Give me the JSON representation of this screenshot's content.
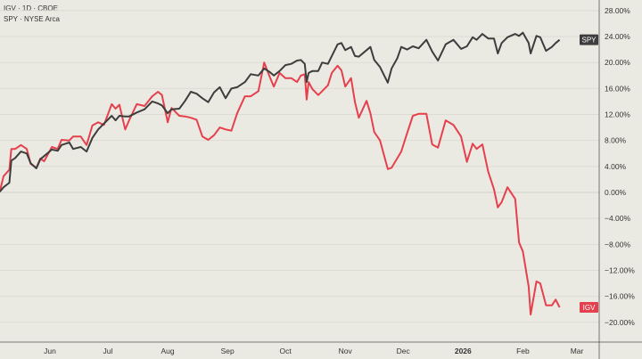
{
  "legend": {
    "line1": "IGV · 1D · CBOE",
    "line2": "SPY · NYSE Arca"
  },
  "chart_data": {
    "type": "line",
    "title": "",
    "xlabel": "",
    "ylabel": "",
    "y_unit": "percent change",
    "ylim": [
      -22,
      30
    ],
    "y_ticks": [
      "28.00%",
      "24.00%",
      "20.00%",
      "16.00%",
      "12.00%",
      "8.00%",
      "4.00%",
      "0.00%",
      "−4.00%",
      "−8.00%",
      "−12.00%",
      "−16.00%",
      "−20.00%"
    ],
    "grid": true,
    "legend_position": "top-left",
    "x_ticks": [
      {
        "date": "2025-06-01",
        "label": "Jun"
      },
      {
        "date": "2025-07-01",
        "label": "Jul"
      },
      {
        "date": "2025-08-01",
        "label": "Aug"
      },
      {
        "date": "2025-09-01",
        "label": "Sep"
      },
      {
        "date": "2025-10-01",
        "label": "Oct"
      },
      {
        "date": "2025-11-01",
        "label": "Nov"
      },
      {
        "date": "2025-12-01",
        "label": "Dec"
      },
      {
        "date": "2026-01-01",
        "label": "2026",
        "bold": true
      },
      {
        "date": "2026-02-01",
        "label": "Feb"
      },
      {
        "date": "2026-03-01",
        "label": "Mar"
      }
    ],
    "x": [
      "2025-05-06",
      "2025-05-08",
      "2025-05-11",
      "2025-05-12",
      "2025-05-14",
      "2025-05-17",
      "2025-05-20",
      "2025-05-22",
      "2025-05-25",
      "2025-05-27",
      "2025-05-29",
      "2025-06-02",
      "2025-06-05",
      "2025-06-07",
      "2025-06-11",
      "2025-06-13",
      "2025-06-17",
      "2025-06-20",
      "2025-06-23",
      "2025-06-26",
      "2025-06-29",
      "2025-07-03",
      "2025-07-05",
      "2025-07-07",
      "2025-07-10",
      "2025-07-12",
      "2025-07-16",
      "2025-07-20",
      "2025-07-24",
      "2025-07-27",
      "2025-07-29",
      "2025-08-01",
      "2025-08-03",
      "2025-08-07",
      "2025-08-10",
      "2025-08-13",
      "2025-08-16",
      "2025-08-19",
      "2025-08-22",
      "2025-08-25",
      "2025-08-28",
      "2025-08-31",
      "2025-09-03",
      "2025-09-06",
      "2025-09-10",
      "2025-09-13",
      "2025-09-17",
      "2025-09-20",
      "2025-09-23",
      "2025-09-25",
      "2025-09-28",
      "2025-10-01",
      "2025-10-04",
      "2025-10-07",
      "2025-10-09",
      "2025-10-11",
      "2025-10-12",
      "2025-10-13",
      "2025-10-15",
      "2025-10-18",
      "2025-10-20",
      "2025-10-23",
      "2025-10-25",
      "2025-10-28",
      "2025-10-30",
      "2025-11-01",
      "2025-11-04",
      "2025-11-06",
      "2025-11-08",
      "2025-11-12",
      "2025-11-14",
      "2025-11-16",
      "2025-11-19",
      "2025-11-23",
      "2025-11-25",
      "2025-11-28",
      "2025-11-30",
      "2025-12-03",
      "2025-12-06",
      "2025-12-09",
      "2025-12-13",
      "2025-12-16",
      "2025-12-19",
      "2025-12-23",
      "2025-12-27",
      "2025-12-29",
      "2025-12-31",
      "2026-01-03",
      "2026-01-06",
      "2026-01-08",
      "2026-01-11",
      "2026-01-14",
      "2026-01-17",
      "2026-01-19",
      "2026-01-21",
      "2026-01-24",
      "2026-01-28",
      "2026-01-30",
      "2026-02-01",
      "2026-02-04",
      "2026-02-05",
      "2026-02-08",
      "2026-02-10",
      "2026-02-13",
      "2026-02-16",
      "2026-02-18",
      "2026-02-20"
    ],
    "series": [
      {
        "name": "IGV",
        "color": "#e5404d",
        "label": "IGV",
        "values": [
          0.1,
          2.5,
          3.5,
          6.7,
          6.7,
          7.3,
          6.7,
          4.4,
          3.8,
          5.2,
          4.8,
          7.0,
          6.7,
          8.1,
          8.0,
          8.6,
          8.6,
          7.3,
          10.3,
          10.8,
          10.4,
          13.6,
          12.9,
          13.5,
          9.7,
          11.1,
          13.6,
          13.3,
          14.8,
          15.5,
          15.0,
          10.8,
          13.0,
          11.8,
          11.7,
          11.5,
          11.2,
          8.6,
          8.1,
          8.8,
          10.0,
          9.7,
          9.5,
          12.2,
          14.8,
          14.8,
          15.6,
          20.0,
          17.7,
          16.3,
          18.4,
          17.6,
          17.6,
          17.0,
          18.0,
          18.2,
          14.3,
          17.0,
          15.9,
          15.0,
          15.6,
          16.5,
          18.4,
          19.5,
          18.8,
          16.3,
          17.6,
          13.9,
          11.5,
          14.1,
          12.2,
          9.3,
          8.0,
          3.6,
          3.8,
          5.3,
          6.3,
          9.1,
          11.8,
          12.1,
          12.1,
          7.4,
          6.9,
          11.1,
          10.4,
          9.5,
          8.6,
          4.7,
          7.5,
          6.7,
          7.4,
          3.2,
          0.5,
          -2.3,
          -1.5,
          0.8,
          -1.0,
          -7.7,
          -9.1,
          -14.5,
          -18.8,
          -13.7,
          -14.0,
          -17.4,
          -17.4,
          -16.5,
          -17.7
        ]
      },
      {
        "name": "SPY",
        "color": "#3d3d3d",
        "label": "SPY",
        "values": [
          0.1,
          0.8,
          1.5,
          4.9,
          5.3,
          6.3,
          6.0,
          4.5,
          3.7,
          5.1,
          5.6,
          6.6,
          6.4,
          7.3,
          7.7,
          6.7,
          7.0,
          6.3,
          8.4,
          9.7,
          10.6,
          11.8,
          11.1,
          11.8,
          11.7,
          11.7,
          12.3,
          12.8,
          14.0,
          13.7,
          13.4,
          12.2,
          12.8,
          12.9,
          14.1,
          15.5,
          15.2,
          14.5,
          13.9,
          15.4,
          16.2,
          14.5,
          16.0,
          16.2,
          17.0,
          18.2,
          18.0,
          19.1,
          18.5,
          18.0,
          18.7,
          19.6,
          19.8,
          20.3,
          20.4,
          19.8,
          17.0,
          18.4,
          18.7,
          18.7,
          20.0,
          19.8,
          21.0,
          22.8,
          23.0,
          21.9,
          22.4,
          21.0,
          20.9,
          21.9,
          22.4,
          20.4,
          19.3,
          16.9,
          19.1,
          20.7,
          22.4,
          22.0,
          22.5,
          22.2,
          23.5,
          21.7,
          20.3,
          22.8,
          23.5,
          22.8,
          22.1,
          22.5,
          23.9,
          23.5,
          24.4,
          23.7,
          23.7,
          21.4,
          23.0,
          23.9,
          24.4,
          24.1,
          24.6,
          23.0,
          21.4,
          24.1,
          23.9,
          21.8,
          22.4,
          23.0,
          23.5
        ]
      }
    ]
  }
}
